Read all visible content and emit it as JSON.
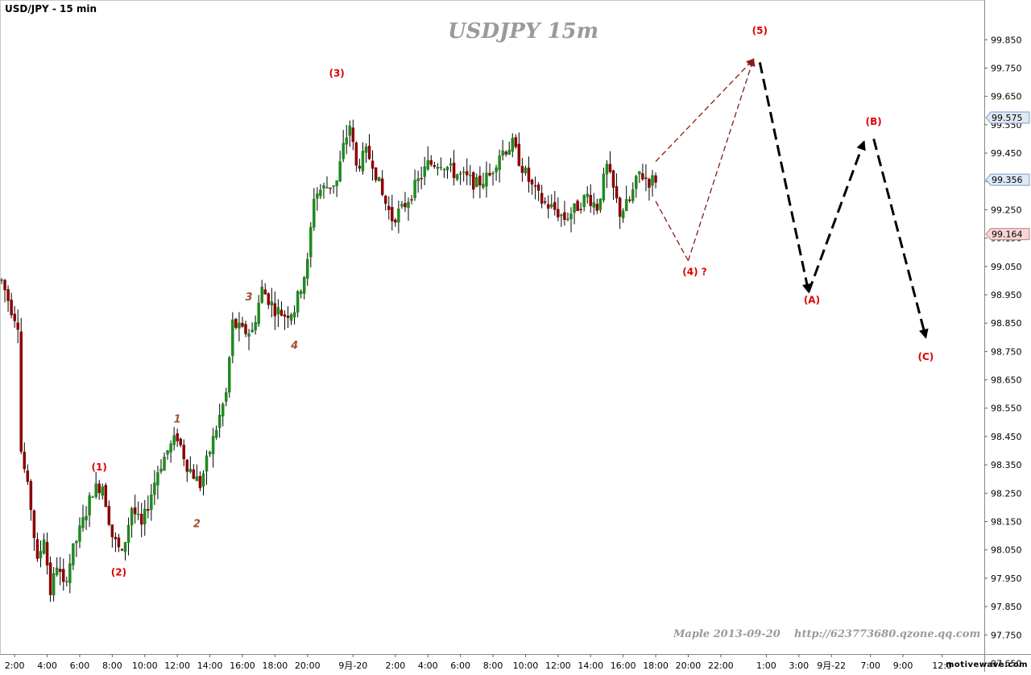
{
  "header": {
    "symbol_label": "USD/JPY - 15 min",
    "chart_title": "USDJPY  15m",
    "author_note": "Maple 2013-09-20",
    "url_note": "http://623773680.qzone.qq.com",
    "brand": "motivewave.com"
  },
  "colors": {
    "up_candle": "#1f8a1f",
    "down_candle": "#8b0000",
    "wave_label": "#e00000",
    "subwave_label": "#a0522d",
    "projection_red": "#8b1a1a",
    "projection_black": "#000000",
    "price_tag_blue": "#dfe8f5",
    "price_tag_red": "#f6d6d6"
  },
  "chart_data": {
    "type": "candlestick",
    "symbol": "USD/JPY",
    "interval": "15 min",
    "ylim": [
      97.62,
      99.99
    ],
    "y_ticks": [
      "99.850",
      "99.750",
      "99.650",
      "99.550",
      "99.450",
      "99.350",
      "99.250",
      "99.150",
      "99.050",
      "98.950",
      "98.850",
      "98.750",
      "98.650",
      "98.550",
      "98.450",
      "98.350",
      "98.250",
      "98.150",
      "98.050",
      "97.950",
      "97.850",
      "97.750",
      "97.650"
    ],
    "x_ticks": [
      "2:00",
      "4:00",
      "6:00",
      "8:00",
      "10:00",
      "12:00",
      "14:00",
      "16:00",
      "18:00",
      "20:00",
      "9月-20",
      "2:00",
      "4:00",
      "6:00",
      "8:00",
      "10:00",
      "12:00",
      "14:00",
      "16:00",
      "18:00",
      "20:00",
      "22:00",
      "1:00",
      "3:00",
      "9月-22",
      "7:00",
      "9:00",
      "12:0"
    ],
    "price_tags": [
      {
        "label": "99.575",
        "value": 99.575,
        "style": "blue"
      },
      {
        "label": "99.356",
        "value": 99.356,
        "style": "blue"
      },
      {
        "label": "99.164",
        "value": 99.164,
        "style": "red"
      }
    ],
    "anchors": [
      [
        0,
        99.0
      ],
      [
        3,
        98.9
      ],
      [
        5,
        98.85
      ],
      [
        6,
        98.4
      ],
      [
        9,
        98.2
      ],
      [
        11,
        98.0
      ],
      [
        13,
        98.1
      ],
      [
        15,
        97.9
      ],
      [
        17,
        98.0
      ],
      [
        19,
        97.92
      ],
      [
        22,
        98.05
      ],
      [
        25,
        98.15
      ],
      [
        28,
        98.26
      ],
      [
        31,
        98.28
      ],
      [
        34,
        98.1
      ],
      [
        37,
        98.03
      ],
      [
        40,
        98.2
      ],
      [
        43,
        98.13
      ],
      [
        46,
        98.25
      ],
      [
        48,
        98.33
      ],
      [
        51,
        98.4
      ],
      [
        54,
        98.45
      ],
      [
        57,
        98.35
      ],
      [
        61,
        98.28
      ],
      [
        64,
        98.4
      ],
      [
        67,
        98.52
      ],
      [
        69,
        98.6
      ],
      [
        71,
        98.85
      ],
      [
        74,
        98.82
      ],
      [
        77,
        98.82
      ],
      [
        80,
        98.97
      ],
      [
        84,
        98.9
      ],
      [
        87,
        98.88
      ],
      [
        90,
        98.9
      ],
      [
        94,
        99.06
      ],
      [
        96,
        99.3
      ],
      [
        98,
        99.32
      ],
      [
        103,
        99.35
      ],
      [
        105,
        99.47
      ],
      [
        107,
        99.55
      ],
      [
        109,
        99.4
      ],
      [
        112,
        99.45
      ],
      [
        114,
        99.42
      ],
      [
        117,
        99.3
      ],
      [
        120,
        99.22
      ],
      [
        123,
        99.25
      ],
      [
        127,
        99.33
      ],
      [
        131,
        99.41
      ],
      [
        135,
        99.42
      ],
      [
        139,
        99.38
      ],
      [
        143,
        99.36
      ],
      [
        146,
        99.34
      ],
      [
        150,
        99.37
      ],
      [
        153,
        99.45
      ],
      [
        157,
        99.48
      ],
      [
        160,
        99.4
      ],
      [
        163,
        99.33
      ],
      [
        166,
        99.28
      ],
      [
        170,
        99.25
      ],
      [
        173,
        99.22
      ],
      [
        176,
        99.25
      ],
      [
        180,
        99.3
      ],
      [
        183,
        99.26
      ],
      [
        186,
        99.4
      ],
      [
        188,
        99.32
      ],
      [
        190,
        99.24
      ],
      [
        193,
        99.28
      ],
      [
        196,
        99.38
      ],
      [
        199,
        99.35
      ],
      [
        201,
        99.36
      ]
    ],
    "projection_red": [
      {
        "from": [
          201,
          99.42
        ],
        "to": [
          231,
          99.78
        ],
        "label": "(5)"
      },
      {
        "from": [
          201,
          99.28
        ],
        "to": [
          211,
          99.07
        ],
        "label": "(4) ?"
      },
      {
        "from": [
          211,
          99.07
        ],
        "to": [
          231,
          99.78
        ]
      }
    ],
    "projection_black": [
      {
        "from": [
          233,
          99.77
        ],
        "to": [
          248,
          98.96
        ],
        "label": "(A)"
      },
      {
        "from": [
          248,
          98.96
        ],
        "to": [
          265,
          99.49
        ],
        "label": "(B)"
      },
      {
        "from": [
          268,
          99.5
        ],
        "to": [
          284,
          98.8
        ],
        "label": "(C)"
      }
    ],
    "wave_labels": [
      {
        "text": "(1)",
        "x": 30,
        "y": 98.33
      },
      {
        "text": "(2)",
        "x": 36,
        "y": 97.96
      },
      {
        "text": "(3)",
        "x": 103,
        "y": 99.72
      },
      {
        "text": "(5)",
        "x": 233,
        "y": 99.87
      },
      {
        "text": "(4) ?",
        "x": 213,
        "y": 99.02
      },
      {
        "text": "(A)",
        "x": 249,
        "y": 98.92
      },
      {
        "text": "(B)",
        "x": 268,
        "y": 99.55
      },
      {
        "text": "(C)",
        "x": 284,
        "y": 98.72
      }
    ],
    "subwave_labels": [
      {
        "text": "1",
        "x": 54,
        "y": 98.5
      },
      {
        "text": "2",
        "x": 60,
        "y": 98.13
      },
      {
        "text": "3",
        "x": 76,
        "y": 98.93
      },
      {
        "text": "4",
        "x": 90,
        "y": 98.76
      }
    ]
  }
}
